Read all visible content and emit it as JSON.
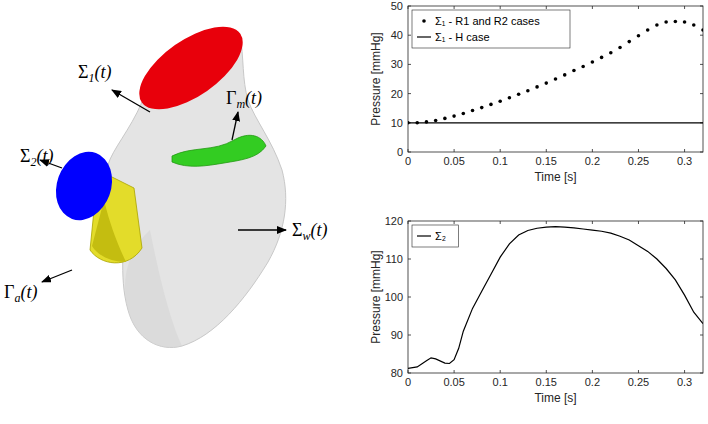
{
  "diagram": {
    "labels": [
      {
        "symbol": "Σ",
        "sub": "1",
        "arg": "(t)"
      },
      {
        "symbol": "Σ",
        "sub": "2",
        "arg": "(t)"
      },
      {
        "symbol": "Γ",
        "sub": "m",
        "arg": "(t)"
      },
      {
        "symbol": "Σ",
        "sub": "w",
        "arg": "(t)"
      },
      {
        "symbol": "Γ",
        "sub": "a",
        "arg": "(t)"
      }
    ]
  },
  "chart_data": [
    {
      "type": "line",
      "x_label": "Time [s]",
      "y_label": "Pressure [mmHg]",
      "xlim": [
        0,
        0.32
      ],
      "xticks": [
        0,
        0.05,
        0.1,
        0.15,
        0.2,
        0.25,
        0.3
      ],
      "ylim": [
        0,
        50
      ],
      "yticks": [
        0,
        10,
        20,
        30,
        40,
        50
      ],
      "grid": false,
      "legend": "upper left",
      "series": [
        {
          "name": "Σ₁ - R1 and R2 cases",
          "type": "scatter",
          "marker": "circle",
          "color": "#000000",
          "x": [
            0,
            0.01,
            0.02,
            0.03,
            0.04,
            0.05,
            0.06,
            0.07,
            0.08,
            0.09,
            0.1,
            0.11,
            0.12,
            0.13,
            0.14,
            0.15,
            0.16,
            0.17,
            0.18,
            0.19,
            0.2,
            0.21,
            0.22,
            0.23,
            0.24,
            0.25,
            0.26,
            0.27,
            0.28,
            0.29,
            0.3,
            0.31,
            0.32
          ],
          "values": [
            10,
            10,
            10.3,
            10.8,
            11.5,
            12.3,
            13.2,
            14.2,
            15.2,
            16.3,
            17.4,
            18.6,
            19.8,
            21.0,
            22.3,
            23.6,
            25.0,
            26.4,
            27.9,
            29.3,
            30.8,
            32.4,
            34.0,
            35.8,
            37.8,
            39.8,
            41.8,
            43.5,
            44.5,
            44.7,
            44.5,
            43.5,
            41.8
          ]
        },
        {
          "name": "Σ₁ - H case",
          "type": "line",
          "line_style": "solid",
          "color": "#000000",
          "x": [
            0,
            0.32
          ],
          "values": [
            10,
            10
          ]
        }
      ]
    },
    {
      "type": "line",
      "x_label": "Time [s]",
      "y_label": "Pressure [mmHg]",
      "xlim": [
        0,
        0.32
      ],
      "xticks": [
        0,
        0.05,
        0.1,
        0.15,
        0.2,
        0.25,
        0.3
      ],
      "ylim": [
        80,
        120
      ],
      "yticks": [
        80,
        90,
        100,
        110,
        120
      ],
      "grid": false,
      "legend": "upper left",
      "series": [
        {
          "name": "Σ₂",
          "type": "line",
          "line_style": "solid",
          "color": "#000000",
          "x": [
            0,
            0.01,
            0.02,
            0.025,
            0.03,
            0.04,
            0.045,
            0.05,
            0.055,
            0.06,
            0.07,
            0.08,
            0.09,
            0.1,
            0.11,
            0.12,
            0.13,
            0.14,
            0.15,
            0.16,
            0.17,
            0.18,
            0.19,
            0.2,
            0.21,
            0.22,
            0.23,
            0.24,
            0.25,
            0.26,
            0.27,
            0.28,
            0.29,
            0.3,
            0.31,
            0.32
          ],
          "values": [
            81.2,
            81.6,
            83.2,
            84,
            83.7,
            82.6,
            82.5,
            83.5,
            86.5,
            91,
            97,
            101.5,
            106,
            110.5,
            114,
            116.3,
            117.5,
            118.1,
            118.4,
            118.5,
            118.4,
            118.2,
            117.9,
            117.6,
            117.3,
            116.8,
            116,
            115,
            113.5,
            112,
            110,
            107.5,
            104.5,
            100.5,
            96,
            93
          ]
        }
      ]
    }
  ]
}
